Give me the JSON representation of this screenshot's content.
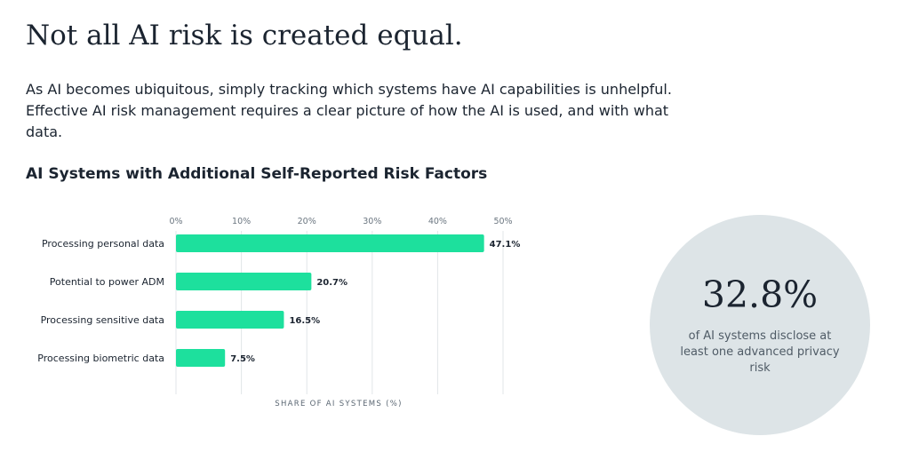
{
  "header": {
    "title": "Not all AI risk is created equal.",
    "intro": "As AI becomes ubiquitous, simply tracking which systems have AI capabilities is unhelpful. Effective AI risk management requires a clear picture of how the AI is used, and with what data."
  },
  "chart_data": {
    "type": "bar",
    "orientation": "horizontal",
    "title": "AI Systems with Additional Self-Reported Risk Factors",
    "categories": [
      "Processing personal data",
      "Potential to power ADM",
      "Processing sensitive data",
      "Processing biometric data"
    ],
    "values": [
      47.1,
      20.7,
      16.5,
      7.5
    ],
    "data_labels": [
      "47.1%",
      "20.7%",
      "16.5%",
      "7.5%"
    ],
    "xlabel": "SHARE OF AI SYSTEMS (%)",
    "xlim": [
      0,
      50
    ],
    "x_ticks": [
      0,
      10,
      20,
      30,
      40,
      50
    ],
    "x_tick_labels": [
      "0%",
      "10%",
      "20%",
      "30%",
      "40%",
      "50%"
    ],
    "x_axis_position": "top",
    "grid": true,
    "bar_color": "#1de09d"
  },
  "stat": {
    "value": "32.8%",
    "caption": "of AI systems disclose at least one advanced privacy risk",
    "bg_color": "#dde4e7"
  }
}
